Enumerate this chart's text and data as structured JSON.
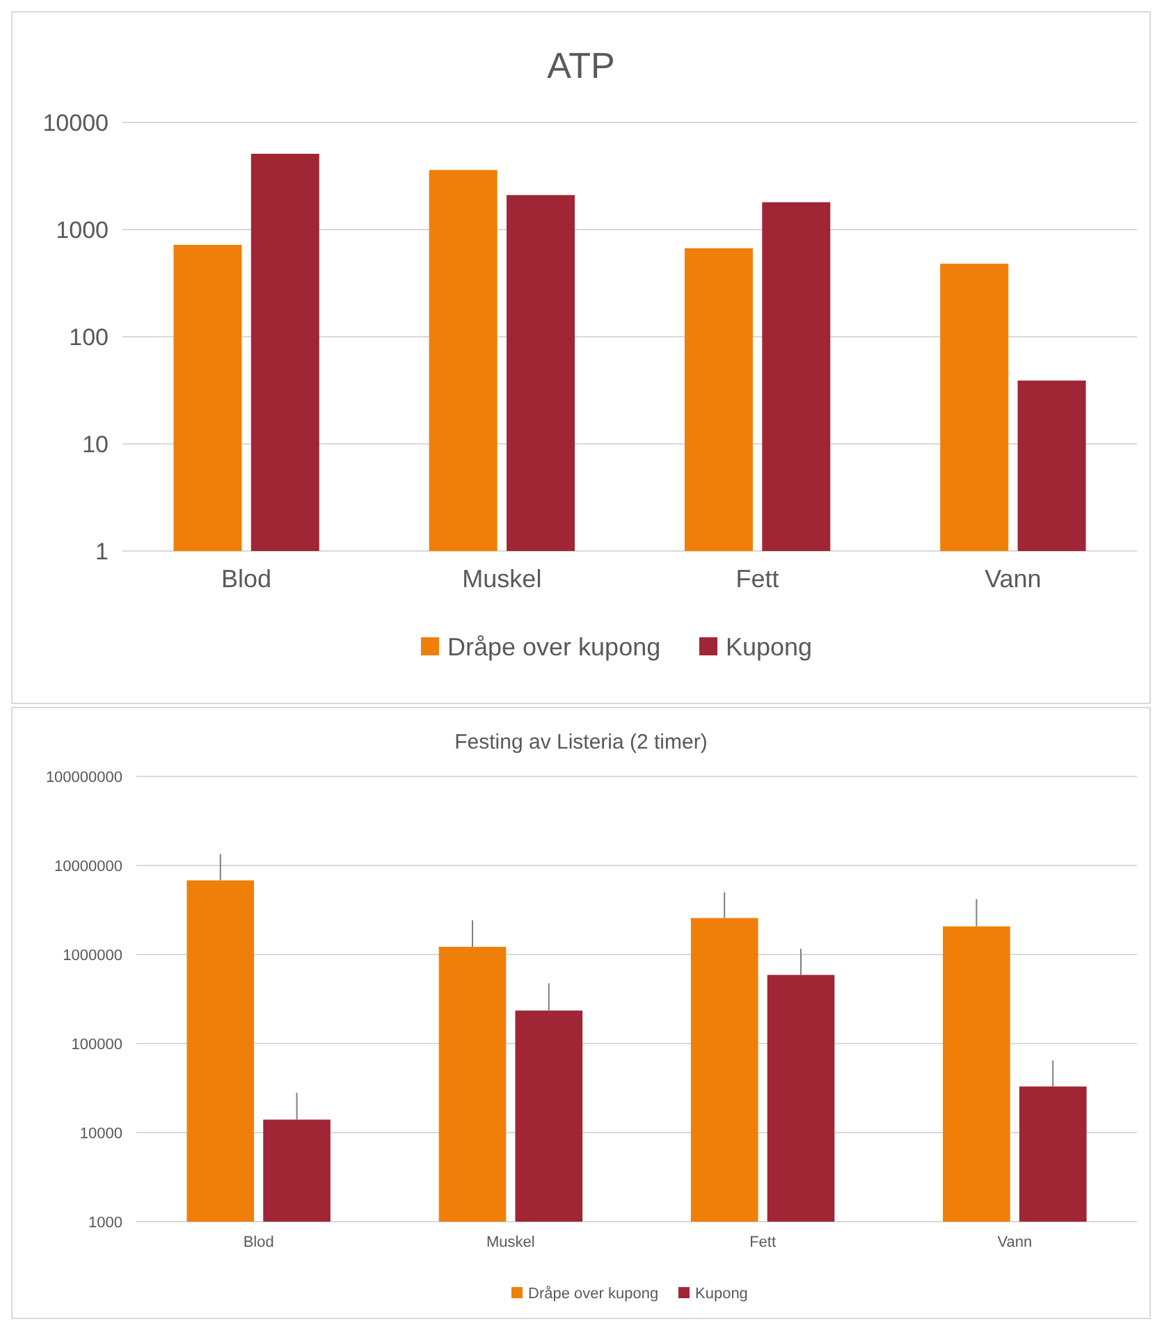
{
  "chart_data": [
    {
      "type": "bar",
      "title": "ATP",
      "categories": [
        "Blod",
        "Muskel",
        "Fett",
        "Vann"
      ],
      "log": true,
      "ylim": [
        1,
        10000
      ],
      "yticks": [
        1,
        10,
        100,
        1000,
        10000
      ],
      "grid": "y",
      "legend": "bottom",
      "series": [
        {
          "name": "Dråpe over kupong",
          "color": "#f07f09",
          "values": [
            720,
            3600,
            670,
            480
          ]
        },
        {
          "name": "Kupong",
          "color": "#a02535",
          "values": [
            5100,
            2100,
            1800,
            39
          ]
        }
      ]
    },
    {
      "type": "bar",
      "title": "Festing av Listeria (2 timer)",
      "categories": [
        "Blod",
        "Muskel",
        "Fett",
        "Vann"
      ],
      "log": true,
      "ylim": [
        1000,
        100000000
      ],
      "yticks": [
        1000,
        10000,
        100000,
        1000000,
        10000000,
        100000000
      ],
      "grid": "y",
      "legend": "bottom",
      "series": [
        {
          "name": "Dråpe over kupong",
          "color": "#f07f09",
          "values": [
            6800000,
            1220000,
            2570000,
            2070000
          ],
          "errors": [
            [
              6800000,
              13400000
            ],
            [
              1220000,
              2430000
            ],
            [
              2570000,
              5000000
            ],
            [
              2070000,
              4190000
            ]
          ]
        },
        {
          "name": "Kupong",
          "color": "#a02535",
          "values": [
            14000,
            235000,
            590000,
            33000
          ],
          "errors": [
            [
              14000,
              28000
            ],
            [
              235000,
              475000
            ],
            [
              590000,
              1160000
            ],
            [
              33000,
              64700
            ]
          ]
        }
      ]
    }
  ]
}
